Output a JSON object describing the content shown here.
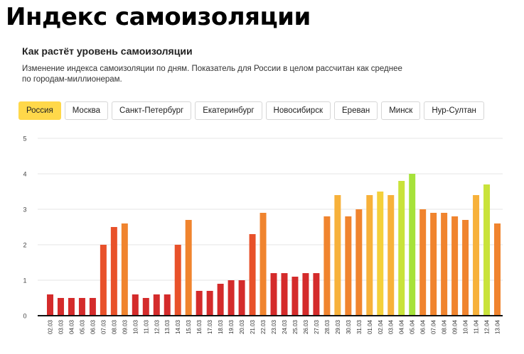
{
  "page_title": "Индекс самоизоляции",
  "widget": {
    "title": "Как растёт уровень самоизоляции",
    "description": "Изменение индекса самоизоляции по дням. Показатель для России в целом рассчитан как среднее по городам-миллионерам."
  },
  "tabs": [
    {
      "label": "Россия",
      "active": true
    },
    {
      "label": "Москва",
      "active": false
    },
    {
      "label": "Санкт-Петербург",
      "active": false
    },
    {
      "label": "Екатеринбург",
      "active": false
    },
    {
      "label": "Новосибирск",
      "active": false
    },
    {
      "label": "Ереван",
      "active": false
    },
    {
      "label": "Минск",
      "active": false
    },
    {
      "label": "Нур-Султан",
      "active": false
    }
  ],
  "colors": {
    "grid": "#e6e6e6",
    "axis": "#111111",
    "tab_active": "#ffd84a",
    "scale": [
      "#d42b2b",
      "#e8512a",
      "#f0842e",
      "#f7b13a",
      "#f4d03a",
      "#c9e33a",
      "#a6e23a"
    ]
  },
  "chart_data": {
    "type": "bar",
    "title": "",
    "xlabel": "",
    "ylabel": "",
    "ylim": [
      0,
      5
    ],
    "yticks": [
      0,
      1,
      2,
      3,
      4,
      5
    ],
    "grid": true,
    "categories": [
      "02.03",
      "03.03",
      "04.03",
      "05.03",
      "06.03",
      "07.03",
      "08.03",
      "09.03",
      "10.03",
      "11.03",
      "12.03",
      "13.03",
      "14.03",
      "15.03",
      "16.03",
      "17.03",
      "18.03",
      "19.03",
      "20.03",
      "21.03",
      "22.03",
      "23.03",
      "24.03",
      "25.03",
      "26.03",
      "27.03",
      "28.03",
      "29.03",
      "30.03",
      "31.03",
      "01.04",
      "02.04",
      "03.04",
      "04.04",
      "05.04",
      "06.04",
      "07.04",
      "08.04",
      "09.04",
      "10.04",
      "11.04",
      "12.04",
      "13.04"
    ],
    "values": [
      0.6,
      0.5,
      0.5,
      0.5,
      0.5,
      2.0,
      2.5,
      2.6,
      0.6,
      0.5,
      0.6,
      0.6,
      2.0,
      2.7,
      0.7,
      0.7,
      0.9,
      1.0,
      1.0,
      2.3,
      2.9,
      1.2,
      1.2,
      1.1,
      1.2,
      1.2,
      2.8,
      3.4,
      2.8,
      3.0,
      3.4,
      3.5,
      3.4,
      3.8,
      4.0,
      3.0,
      2.9,
      2.9,
      2.8,
      2.7,
      3.4,
      3.7,
      2.6
    ]
  }
}
